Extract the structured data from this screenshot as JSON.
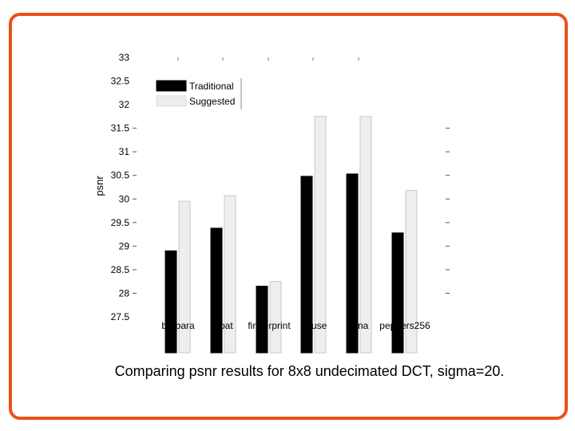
{
  "colors": {
    "border": "#e8511c",
    "traditional": "#000000",
    "suggested": "#eeeeee"
  },
  "caption": "Comparing psnr results for 8x8 undecimated DCT, sigma=20.",
  "chart_data": {
    "type": "bar",
    "title": "",
    "xlabel": "",
    "ylabel": "psnr",
    "ylim": [
      27.5,
      33
    ],
    "yticks": [
      "27.5",
      "28",
      "28.5",
      "29",
      "29.5",
      "30",
      "30.5",
      "31",
      "31.5",
      "32",
      "32.5",
      "33"
    ],
    "categories": [
      "barbara",
      "boat",
      "fingerprint",
      "house",
      "lena",
      "peppers256"
    ],
    "series": [
      {
        "name": "Traditional",
        "color": "#000000",
        "values": [
          28.9,
          29.38,
          28.15,
          30.48,
          30.53,
          29.28
        ]
      },
      {
        "name": "Suggested",
        "color": "#eeeeee",
        "values": [
          29.95,
          30.07,
          28.25,
          31.75,
          31.75,
          30.18
        ]
      }
    ],
    "legend": "top-left",
    "grid": false
  }
}
